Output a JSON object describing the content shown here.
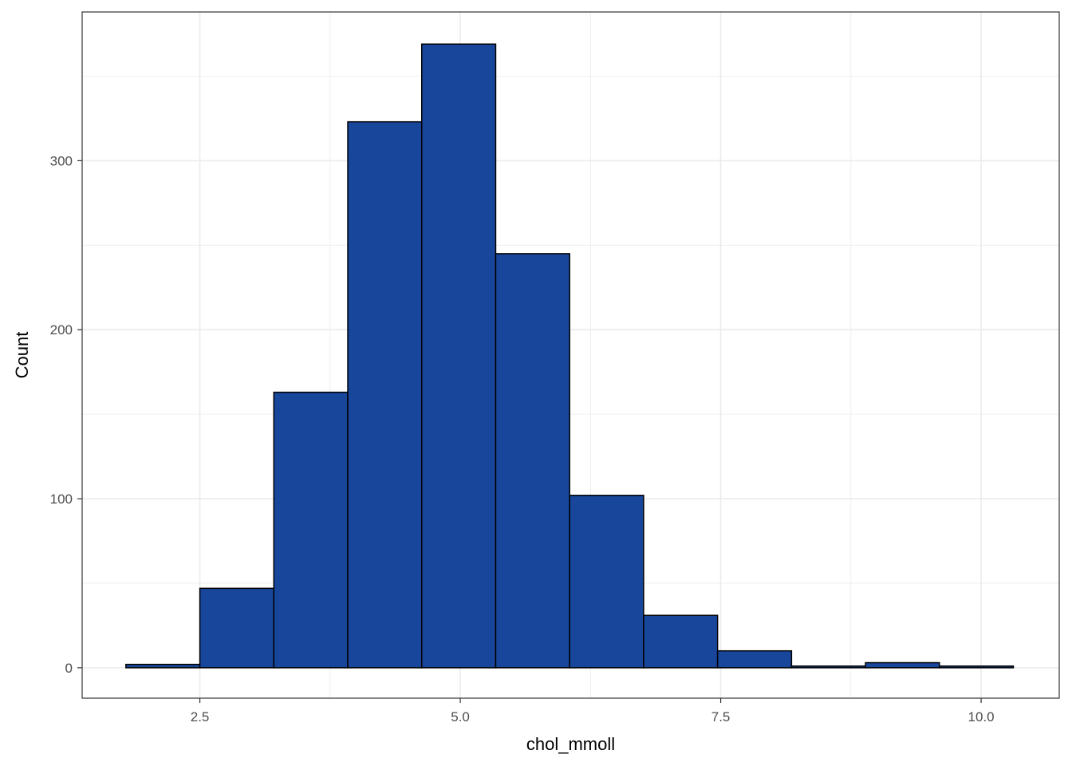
{
  "chart_data": {
    "type": "bar",
    "subtype": "histogram",
    "xlabel": "chol_mmoll",
    "ylabel": "Count",
    "xlim": [
      1.37,
      10.75
    ],
    "ylim": [
      -18,
      388
    ],
    "x_ticks": [
      2.5,
      5.0,
      7.5,
      10.0
    ],
    "x_tick_labels": [
      "2.5",
      "5.0",
      "7.5",
      "10.0"
    ],
    "x_minor_ticks": [
      3.75,
      6.25,
      8.75
    ],
    "y_ticks": [
      0,
      100,
      200,
      300
    ],
    "y_tick_labels": [
      "0",
      "100",
      "200",
      "300"
    ],
    "y_minor_ticks": [
      50,
      150,
      250,
      350
    ],
    "bins": [
      {
        "x0": 1.79,
        "x1": 2.5,
        "count": 2
      },
      {
        "x0": 2.5,
        "x1": 3.21,
        "count": 47
      },
      {
        "x0": 3.21,
        "x1": 3.92,
        "count": 163
      },
      {
        "x0": 3.92,
        "x1": 4.63,
        "count": 323
      },
      {
        "x0": 4.63,
        "x1": 5.34,
        "count": 369
      },
      {
        "x0": 5.34,
        "x1": 6.05,
        "count": 245
      },
      {
        "x0": 6.05,
        "x1": 6.76,
        "count": 102
      },
      {
        "x0": 6.76,
        "x1": 7.47,
        "count": 31
      },
      {
        "x0": 7.47,
        "x1": 8.18,
        "count": 10
      },
      {
        "x0": 8.18,
        "x1": 8.89,
        "count": 1
      },
      {
        "x0": 8.89,
        "x1": 9.6,
        "count": 3
      },
      {
        "x0": 9.6,
        "x1": 10.31,
        "count": 1
      }
    ],
    "grid": true,
    "colors": {
      "fill": "#18469b",
      "outline": "#000000",
      "grid": "#ebebeb",
      "panel_border": "#333333"
    }
  }
}
